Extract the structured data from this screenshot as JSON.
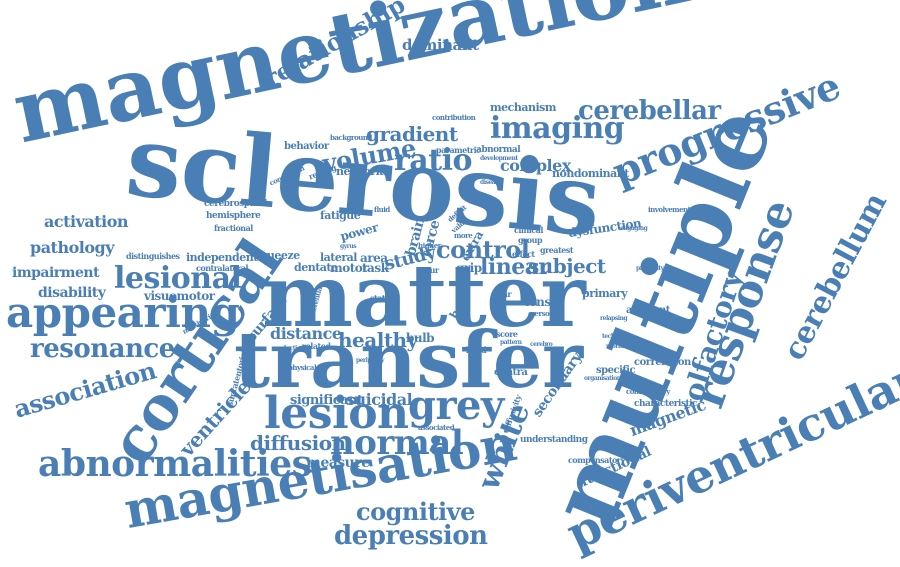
{
  "color": "#4a7fb5",
  "words": [
    "magnetization",
    "sclerosis",
    "multiple",
    "matter",
    "transfer",
    "cortical",
    "magnetisation",
    "periventricular",
    "response",
    "progressive",
    "abnormalities",
    "lesion",
    "normal",
    "grey",
    "white",
    "appearing",
    "lesional",
    "imaging",
    "cerebellar",
    "cerebellum",
    "olfactory",
    "relationship",
    "resonance",
    "association",
    "depression",
    "cognitive",
    "ratio",
    "volume",
    "gradient",
    "control",
    "linear",
    "subject",
    "diffusion",
    "ventricle",
    "study",
    "healthy",
    "distance",
    "surface",
    "significant",
    "suicidal",
    "measure",
    "secondary",
    "functional",
    "magnetic",
    "dominant",
    "activation",
    "pathology",
    "impairment",
    "disability",
    "visuomotor",
    "complex",
    "network",
    "behavior",
    "nondominant",
    "mechanism",
    "dysfunction",
    "area",
    "task",
    "brain",
    "force",
    "lateral",
    "motor",
    "squeeze",
    "dentate",
    "power",
    "fatigue",
    "grip",
    "tensor",
    "primary",
    "adjacent",
    "correlation",
    "characteristic",
    "specific",
    "compensatory",
    "understanding",
    "independent",
    "contralateral",
    "hemisphere",
    "cerebrospinal",
    "fractional",
    "distinguishes",
    "related",
    "extra",
    "bulb",
    "bold",
    "score",
    "year",
    "effect",
    "greatest",
    "clinical",
    "group",
    "contra",
    "abnormal",
    "parametric",
    "resting",
    "conclusion",
    "background",
    "contribution",
    "development",
    "disease",
    "involvement",
    "engaging",
    "proximity",
    "relapsing",
    "technique",
    "morbidity",
    "organisation",
    "commentary",
    "supratentorial",
    "physical",
    "reduction",
    "periphery",
    "multivariate",
    "differential",
    "associated",
    "band",
    "diffusivity",
    "pattern",
    "cerebro",
    "occur",
    "person",
    "state",
    "higher",
    "deficit",
    "value",
    "more",
    "fluid",
    "tracts",
    "gyrus"
  ]
}
